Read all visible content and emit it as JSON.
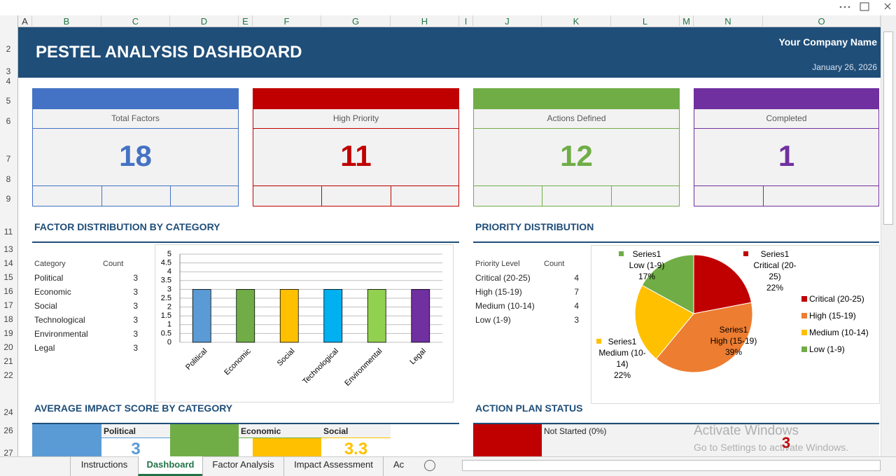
{
  "columns": [
    "A",
    "B",
    "C",
    "D",
    "E",
    "F",
    "G",
    "H",
    "I",
    "J",
    "K",
    "L",
    "M",
    "N",
    "O"
  ],
  "rows": [
    2,
    3,
    4,
    5,
    6,
    7,
    8,
    9,
    11,
    13,
    14,
    15,
    16,
    17,
    18,
    19,
    20,
    21,
    22,
    24,
    26,
    27
  ],
  "header": {
    "title": "PESTEL ANALYSIS DASHBOARD",
    "company": "Your Company Name",
    "date": "January 26, 2026"
  },
  "kpis": [
    {
      "label": "Total Factors",
      "value": 18,
      "color": "#4472c4"
    },
    {
      "label": "High Priority",
      "value": 11,
      "color": "#c00000"
    },
    {
      "label": "Actions Defined",
      "value": 12,
      "color": "#70ad47"
    },
    {
      "label": "Completed",
      "value": 1,
      "color": "#7030a0"
    }
  ],
  "factor_distribution": {
    "title": "FACTOR DISTRIBUTION BY CATEGORY",
    "headers": [
      "Category",
      "Count"
    ],
    "rows": [
      [
        "Political",
        3
      ],
      [
        "Economic",
        3
      ],
      [
        "Social",
        3
      ],
      [
        "Technological",
        3
      ],
      [
        "Environmental",
        3
      ],
      [
        "Legal",
        3
      ]
    ]
  },
  "priority_distribution": {
    "title": "PRIORITY DISTRIBUTION",
    "headers": [
      "Priority Level",
      "Count"
    ],
    "rows": [
      [
        "Critical (20-25)",
        4
      ],
      [
        "High (15-19)",
        7
      ],
      [
        "Medium (10-14)",
        4
      ],
      [
        "Low (1-9)",
        3
      ]
    ]
  },
  "chart_data": [
    {
      "type": "bar",
      "categories": [
        "Political",
        "Economic",
        "Social",
        "Technological",
        "Environmental",
        "Legal"
      ],
      "values": [
        3,
        3,
        3,
        3,
        3,
        3
      ],
      "colors": [
        "#5b9bd5",
        "#70ad47",
        "#ffc000",
        "#00b0f0",
        "#92d050",
        "#7030a0"
      ],
      "ylim": [
        0,
        5
      ],
      "yticks": [
        0,
        0.5,
        1,
        1.5,
        2,
        2.5,
        3,
        3.5,
        4,
        4.5,
        5
      ],
      "grid": true
    },
    {
      "type": "pie",
      "series_name": "Series1",
      "categories": [
        "Critical (20-25)",
        "High (15-19)",
        "Medium (10-14)",
        "Low (1-9)"
      ],
      "values": [
        22,
        39,
        22,
        17
      ],
      "value_labels": [
        "22%",
        "39%",
        "22%",
        "17%"
      ],
      "colors": [
        "#c00000",
        "#ed7d31",
        "#ffc000",
        "#70ad47"
      ],
      "legend": "right"
    }
  ],
  "impact": {
    "title": "AVERAGE IMPACT SCORE BY CATEGORY",
    "cards": [
      {
        "label": "Political",
        "value": 3,
        "color": "#5b9bd5"
      },
      {
        "label": "Economic",
        "color": "#70ad47"
      },
      {
        "label": "Social",
        "value": 3.3,
        "color": "#ffc000"
      }
    ]
  },
  "action_plan": {
    "title": "ACTION PLAN STATUS",
    "status_label": "Not Started (0%)",
    "count": 3,
    "color": "#c00000"
  },
  "watermark": {
    "line1": "Activate Windows",
    "line2": "Go to Settings to activate Windows."
  },
  "tabs": [
    "Instructions",
    "Dashboard",
    "Factor Analysis",
    "Impact Assessment",
    "Ac"
  ]
}
